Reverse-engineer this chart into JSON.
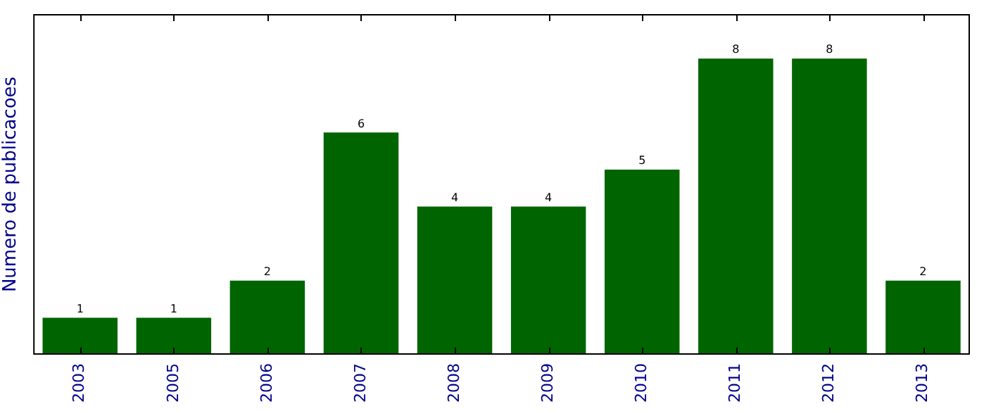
{
  "chart_data": {
    "type": "bar",
    "ylabel": "Numero de publicacoes",
    "categories": [
      "2003",
      "2005",
      "2006",
      "2007",
      "2008",
      "2009",
      "2010",
      "2011",
      "2012",
      "2013"
    ],
    "values": [
      1,
      1,
      2,
      6,
      4,
      4,
      5,
      8,
      8,
      2
    ],
    "color": "#006400",
    "ylim": [
      0,
      9.2
    ],
    "tick_labels": "x",
    "data_labels": true,
    "grid": false,
    "legend": false
  }
}
